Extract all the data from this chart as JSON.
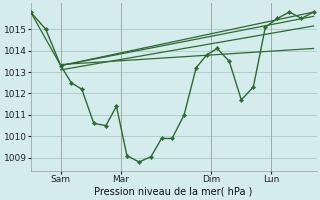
{
  "background_color": "#d4ecec",
  "grid_color": "#aacccc",
  "line_color": "#2d6a2d",
  "xlabel": "Pression niveau de la mer( hPa )",
  "ylim": [
    1008.4,
    1016.2
  ],
  "yticks": [
    1009,
    1010,
    1011,
    1012,
    1013,
    1014,
    1015
  ],
  "xtick_labels": [
    "Sam",
    "Mar",
    "Dim",
    "Lun"
  ],
  "xtick_positions": [
    1,
    3,
    6,
    8
  ],
  "xlim": [
    0,
    9.5
  ],
  "series_main": {
    "x": [
      0.0,
      0.5,
      1.0,
      1.35,
      1.7,
      2.1,
      2.5,
      2.85,
      3.2,
      3.6,
      4.0,
      4.35,
      4.7,
      5.1,
      5.5,
      5.85,
      6.2,
      6.6,
      7.0,
      7.4,
      7.8,
      8.2,
      8.6,
      9.0,
      9.4
    ],
    "y": [
      1015.8,
      1015.0,
      1013.3,
      1012.5,
      1012.2,
      1010.6,
      1010.5,
      1011.4,
      1009.1,
      1008.8,
      1009.05,
      1009.9,
      1009.9,
      1011.0,
      1013.2,
      1013.8,
      1014.1,
      1013.5,
      1011.7,
      1012.3,
      1015.1,
      1015.5,
      1015.8,
      1015.5,
      1015.8
    ]
  },
  "trend1": {
    "x": [
      1.0,
      9.4
    ],
    "y": [
      1013.3,
      1015.6
    ]
  },
  "trend2": {
    "x": [
      1.0,
      9.4
    ],
    "y": [
      1013.1,
      1015.15
    ]
  },
  "trend3": {
    "x": [
      1.0,
      9.4
    ],
    "y": [
      1013.35,
      1014.1
    ]
  },
  "envelope": {
    "x": [
      0.0,
      1.0,
      9.4
    ],
    "y": [
      1015.8,
      1013.3,
      1015.8
    ]
  }
}
